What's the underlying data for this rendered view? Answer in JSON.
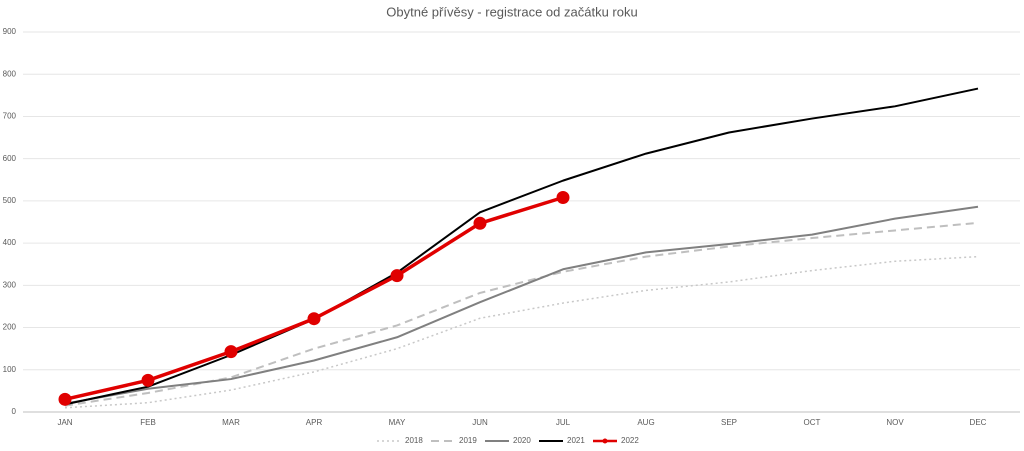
{
  "chart_data": {
    "type": "line",
    "title": "Obytné přívěsy - registrace od začátku roku",
    "categories": [
      "JAN",
      "FEB",
      "MAR",
      "APR",
      "MAY",
      "JUN",
      "JUL",
      "AUG",
      "SEP",
      "OCT",
      "NOV",
      "DEC"
    ],
    "series": [
      {
        "name": "2018",
        "color": "#c8c8c8",
        "style": "dotted",
        "width": 1.5,
        "values": [
          10,
          22,
          52,
          95,
          150,
          222,
          258,
          288,
          308,
          335,
          357,
          368
        ]
      },
      {
        "name": "2019",
        "color": "#bfbfbf",
        "style": "dashed",
        "width": 2,
        "values": [
          15,
          45,
          82,
          150,
          205,
          282,
          332,
          368,
          392,
          412,
          430,
          448
        ]
      },
      {
        "name": "2020",
        "color": "#808080",
        "style": "solid",
        "width": 2,
        "values": [
          20,
          55,
          78,
          122,
          177,
          260,
          338,
          378,
          398,
          420,
          458,
          486
        ]
      },
      {
        "name": "2021",
        "color": "#000000",
        "style": "solid",
        "width": 2,
        "values": [
          18,
          60,
          135,
          220,
          330,
          473,
          548,
          612,
          662,
          695,
          724,
          766
        ]
      },
      {
        "name": "2022",
        "color": "#e00000",
        "style": "solid",
        "width": 3.5,
        "marker": true,
        "values": [
          30,
          75,
          143,
          221,
          323,
          447,
          508,
          null,
          null,
          null,
          null,
          null
        ]
      }
    ],
    "ylim": [
      0,
      900
    ],
    "yticks": [
      0,
      100,
      200,
      300,
      400,
      500,
      600,
      700,
      800,
      900
    ],
    "grid": true,
    "legend": "bottom"
  }
}
